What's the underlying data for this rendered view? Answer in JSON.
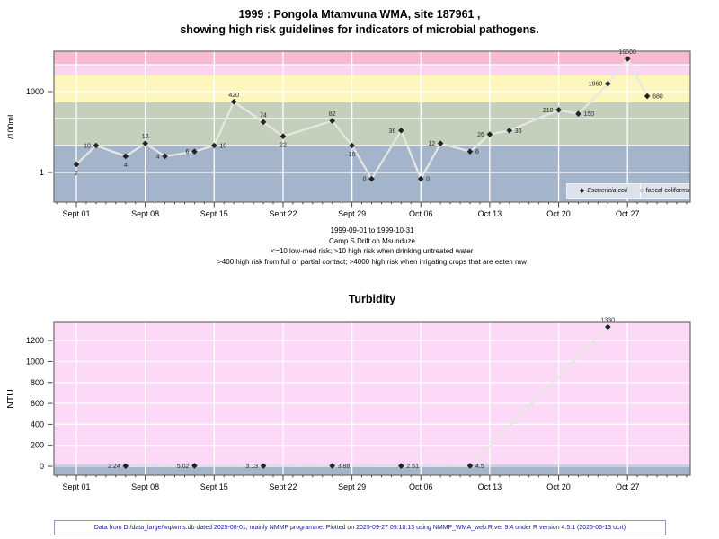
{
  "header": {
    "title_line1": "1999 : Pongola Mtamvuna WMA, site 187961 ,",
    "title_line2": "showing high risk guidelines for indicators of microbial pathogens."
  },
  "footer": {
    "text": "Data from D:/data_large/wq/wms.db dated 2025-08-01, mainly NMMP programme. Plotted on 2025-09-27 09:10:13 using NMMP_WMA_web.R ver 9.4 under R version 4.5.1 (2025-06-13 ucrt)",
    "text_color": "#16168c"
  },
  "chart_data": [
    {
      "id": "microbial",
      "type": "line",
      "title": "1999 : Pongola Mtamvuna WMA, site 187961 , showing high risk guidelines for indicators of microbial pathogens.",
      "ylabel": "/100mL",
      "y_scale": "log",
      "y_domain": [
        0.079,
        31623
      ],
      "x_domain_days": [
        -2.3,
        62.4
      ],
      "grid": "white lines, weekly vertical, decade horizontal",
      "grid_y_values": [
        1,
        10,
        100,
        1000,
        10000
      ],
      "y_ticks": [
        {
          "value": 1000,
          "label": "1000"
        },
        {
          "value": 1,
          "label": "1"
        }
      ],
      "x_ticks": [
        {
          "day": 0,
          "label": "Sept 01"
        },
        {
          "day": 7,
          "label": "Sept 08"
        },
        {
          "day": 14,
          "label": "Sept 15"
        },
        {
          "day": 21,
          "label": "Sept 22"
        },
        {
          "day": 28,
          "label": "Sept 29"
        },
        {
          "day": 35,
          "label": "Oct 06"
        },
        {
          "day": 42,
          "label": "Oct 13"
        },
        {
          "day": 49,
          "label": "Oct 20"
        },
        {
          "day": 56,
          "label": "Oct 27"
        }
      ],
      "bands": [
        {
          "from": 0.079,
          "to": 10,
          "color": "#a4b4cb",
          "meaning": "<=10 low-med risk"
        },
        {
          "from": 10,
          "to": 400,
          "color": "#c5d0bc",
          "meaning": ">10 high risk when drinking untreated water"
        },
        {
          "from": 400,
          "to": 4000,
          "color": "#fdf7bd",
          "meaning": ">400 high risk from full or partial contact"
        },
        {
          "from": 4000,
          "to": 10000,
          "color": "#fbd6ee",
          "meaning": ">4000 high risk when irrigating crops eaten raw"
        },
        {
          "from": 10000,
          "to": 31623,
          "color": "#f7bad2",
          "meaning": "extreme"
        }
      ],
      "zero_plot_value": 0.58,
      "series": [
        {
          "name": "Eschericia coli",
          "marker": "filled-diamond",
          "marker_color": "#222222",
          "line_color": "#e7e7e2",
          "points": [
            {
              "date": "1999-09-01",
              "day": 0,
              "value": 2,
              "label": "2",
              "label_pos": "below"
            },
            {
              "date": "1999-09-03",
              "day": 2,
              "value": 10,
              "label": "10",
              "label_pos": "left"
            },
            {
              "date": "1999-09-06",
              "day": 5,
              "value": 4,
              "label": "4",
              "label_pos": "below"
            },
            {
              "date": "1999-09-08",
              "day": 7,
              "value": 12,
              "label": "12",
              "label_pos": "above"
            },
            {
              "date": "1999-09-10",
              "day": 9,
              "value": 4,
              "label": "4",
              "label_pos": "left"
            },
            {
              "date": "1999-09-13",
              "day": 12,
              "value": 6,
              "label": "6",
              "label_pos": "left"
            },
            {
              "date": "1999-09-15",
              "day": 14,
              "value": 10,
              "label": "10",
              "label_pos": "right"
            },
            {
              "date": "1999-09-17",
              "day": 16,
              "value": 420,
              "label": "420",
              "label_pos": "above"
            },
            {
              "date": "1999-09-20",
              "day": 19,
              "value": 74,
              "label": "74",
              "label_pos": "above"
            },
            {
              "date": "1999-09-22",
              "day": 21,
              "value": 22,
              "label": "22",
              "label_pos": "below"
            },
            {
              "date": "1999-09-27",
              "day": 26,
              "value": 82,
              "label": "82",
              "label_pos": "above"
            },
            {
              "date": "1999-09-29",
              "day": 28,
              "value": 10,
              "label": "10",
              "label_pos": "below"
            },
            {
              "date": "1999-10-01",
              "day": 30,
              "value": 0,
              "label": "0",
              "label_pos": "left"
            },
            {
              "date": "1999-10-04",
              "day": 33,
              "value": 36,
              "label": "36",
              "label_pos": "left"
            },
            {
              "date": "1999-10-06",
              "day": 35,
              "value": 0,
              "label": "0",
              "label_pos": "right"
            },
            {
              "date": "1999-10-08",
              "day": 37,
              "value": 12,
              "label": "12",
              "label_pos": "left"
            },
            {
              "date": "1999-10-11",
              "day": 40,
              "value": 6,
              "label": "6",
              "label_pos": "right"
            },
            {
              "date": "1999-10-13",
              "day": 42,
              "value": 26,
              "label": "26",
              "label_pos": "left"
            },
            {
              "date": "1999-10-15",
              "day": 44,
              "value": 36,
              "label": "36",
              "label_pos": "right"
            },
            {
              "date": "1999-10-20",
              "day": 49,
              "value": 210,
              "label": "210",
              "label_pos": "left"
            },
            {
              "date": "1999-10-22",
              "day": 51,
              "value": 150,
              "label": "150",
              "label_pos": "right"
            },
            {
              "date": "1999-10-25",
              "day": 54,
              "value": 1960,
              "label": "1960",
              "label_pos": "left"
            },
            {
              "date": "1999-10-27",
              "day": 56,
              "value": 16600,
              "label": "16600",
              "label_pos": "above"
            },
            {
              "date": "1999-10-29",
              "day": 58,
              "value": 680,
              "label": "680",
              "label_pos": "right"
            }
          ]
        }
      ],
      "legend": [
        {
          "marker": "filled-diamond",
          "label": "Eschericia coli",
          "italic": true
        },
        {
          "marker": "open-circle",
          "label": "faecal coliforms",
          "italic": false
        }
      ],
      "captions": [
        "1999-09-01 to 1999-10-31",
        "Camp S Drift on Msunduze",
        "<=10 low-med risk; >10 high risk when drinking untreated water",
        ">400 high risk from full or partial contact; >4000 high risk when irrigating crops that are eaten raw"
      ]
    },
    {
      "id": "turbidity",
      "type": "line",
      "title": "Turbidity",
      "ylabel": "NTU",
      "y_scale": "linear",
      "y_domain": [
        -86,
        1381
      ],
      "x_domain_days": [
        -2.3,
        62.4
      ],
      "background_color": "#fcdaf7",
      "bottom_band": {
        "color": "#a4b4cb",
        "strip_color": "#c6d0de"
      },
      "grid_y_values": [
        200,
        400,
        600,
        800,
        1000,
        1200
      ],
      "y_ticks": [
        {
          "value": 0,
          "label": "0"
        },
        {
          "value": 200,
          "label": "200"
        },
        {
          "value": 400,
          "label": "400"
        },
        {
          "value": 600,
          "label": "600"
        },
        {
          "value": 800,
          "label": "800"
        },
        {
          "value": 1000,
          "label": "1000"
        },
        {
          "value": 1200,
          "label": "1200"
        }
      ],
      "x_ticks": [
        {
          "day": 0,
          "label": "Sept 01"
        },
        {
          "day": 7,
          "label": "Sept 08"
        },
        {
          "day": 14,
          "label": "Sept 15"
        },
        {
          "day": 21,
          "label": "Sept 22"
        },
        {
          "day": 28,
          "label": "Sept 29"
        },
        {
          "day": 35,
          "label": "Oct 06"
        },
        {
          "day": 42,
          "label": "Oct 13"
        },
        {
          "day": 49,
          "label": "Oct 20"
        },
        {
          "day": 56,
          "label": "Oct 27"
        }
      ],
      "series": [
        {
          "name": "Turbidity",
          "marker": "filled-diamond",
          "marker_color": "#222222",
          "line_color": "#e7e7e2",
          "points": [
            {
              "date": "1999-09-06",
              "day": 5,
              "value": 2.24,
              "label": "2.24",
              "label_pos": "left"
            },
            {
              "date": "1999-09-13",
              "day": 12,
              "value": 5.02,
              "label": "5.02",
              "label_pos": "left"
            },
            {
              "date": "1999-09-20",
              "day": 19,
              "value": 3.13,
              "label": "3.13",
              "label_pos": "left"
            },
            {
              "date": "1999-09-27",
              "day": 26,
              "value": 3.88,
              "label": "3.88",
              "label_pos": "right"
            },
            {
              "date": "1999-10-04",
              "day": 33,
              "value": 2.51,
              "label": "2.51",
              "label_pos": "right"
            },
            {
              "date": "1999-10-11",
              "day": 40,
              "value": 4.5,
              "label": "4.5",
              "label_pos": "right"
            },
            {
              "date": "1999-10-25",
              "day": 54,
              "value": 1330,
              "label": "1330",
              "label_pos": "above"
            }
          ]
        }
      ]
    }
  ],
  "style": {
    "grid_color": "#ffffff",
    "panel_border_color": "#6b6b6b",
    "point_label_color": "#2b2b2b",
    "tick_label_color": "#000000",
    "legend_bg": "#dce2ec"
  }
}
